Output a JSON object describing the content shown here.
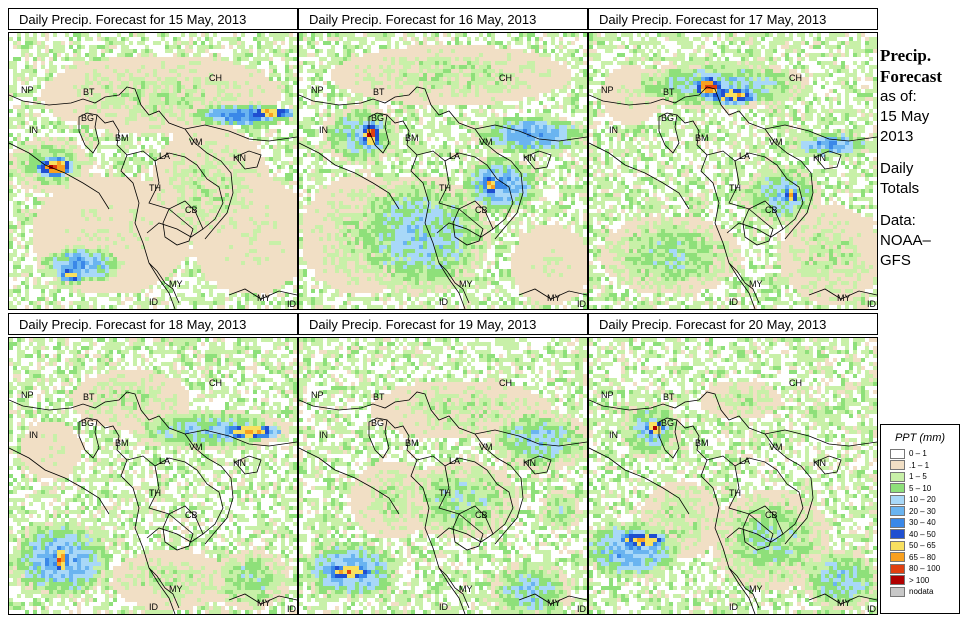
{
  "panels": [
    {
      "title": "Daily Precip. Forecast for  15 May, 2013",
      "labels": {
        "np": "NP",
        "bt": "BT",
        "bg": "BG",
        "in": "IN",
        "bm": "BM",
        "ch": "CH",
        "vm": "VM",
        "la": "LA",
        "hn": "HN",
        "th": "TH",
        "cb": "CB",
        "my1": "MY",
        "my2": "MY",
        "id1": "ID",
        "id2": "ID"
      }
    },
    {
      "title": "Daily Precip. Forecast for  16 May, 2013",
      "labels": {
        "np": "NP",
        "bt": "BT",
        "bg": "BG",
        "in": "IN",
        "bm": "BM",
        "ch": "CH",
        "vm": "VM",
        "la": "LA",
        "hn": "HN",
        "th": "TH",
        "cb": "CB",
        "my1": "MY",
        "my2": "MY",
        "id1": "ID",
        "id2": "ID"
      }
    },
    {
      "title": "Daily Precip. Forecast for  17 May, 2013",
      "labels": {
        "np": "NP",
        "bt": "BT",
        "bg": "BG",
        "in": "IN",
        "bm": "BM",
        "ch": "CH",
        "vm": "VM",
        "la": "LA",
        "hn": "HN",
        "th": "TH",
        "cb": "CB",
        "my1": "MY",
        "my2": "MY",
        "id1": "ID",
        "id2": "ID"
      }
    },
    {
      "title": "Daily Precip. Forecast for  18 May, 2013",
      "labels": {
        "np": "NP",
        "bt": "BT",
        "bg": "BG",
        "in": "IN",
        "bm": "BM",
        "ch": "CH",
        "vm": "VM",
        "la": "LA",
        "hn": "HN",
        "th": "TH",
        "cb": "CB",
        "my1": "MY",
        "my2": "MY",
        "id1": "ID",
        "id2": "ID"
      }
    },
    {
      "title": "Daily Precip. Forecast for  19 May, 2013",
      "labels": {
        "np": "NP",
        "bt": "BT",
        "bg": "BG",
        "in": "IN",
        "bm": "BM",
        "ch": "CH",
        "vm": "VM",
        "la": "LA",
        "hn": "HN",
        "th": "TH",
        "cb": "CB",
        "my1": "MY",
        "my2": "MY",
        "id1": "ID",
        "id2": "ID"
      }
    },
    {
      "title": "Daily Precip. Forecast for  20 May, 2013",
      "labels": {
        "np": "NP",
        "bt": "BT",
        "bg": "BG",
        "in": "IN",
        "bm": "BM",
        "ch": "CH",
        "vm": "VM",
        "la": "LA",
        "hn": "HN",
        "th": "TH",
        "cb": "CB",
        "my1": "MY",
        "my2": "MY",
        "id1": "ID",
        "id2": "ID"
      }
    }
  ],
  "side": {
    "line1": "Precip.",
    "line2": "Forecast",
    "line3": "as of:",
    "line4": "15 May",
    "line5": "2013",
    "line6": "Daily",
    "line7": "Totals",
    "line8": "Data:",
    "line9": "NOAA–",
    "line10": "GFS"
  },
  "legend": {
    "title": "PPT (mm)",
    "items": [
      {
        "label": "0 – 1",
        "color": "#ffffff"
      },
      {
        "label": ".1 – 1",
        "color": "#f1dfc5"
      },
      {
        "label": "1 – 5",
        "color": "#c8f0a8"
      },
      {
        "label": "5 – 10",
        "color": "#8ee07a"
      },
      {
        "label": "10 – 20",
        "color": "#a8d8f8"
      },
      {
        "label": "20 – 30",
        "color": "#6ab4f0"
      },
      {
        "label": "30 – 40",
        "color": "#3a88e8"
      },
      {
        "label": "40 – 50",
        "color": "#1f4fd0"
      },
      {
        "label": "50 – 65",
        "color": "#f8e060"
      },
      {
        "label": "65 – 80",
        "color": "#f8a020"
      },
      {
        "label": "80 – 100",
        "color": "#e04010"
      },
      {
        "label": "> 100",
        "color": "#b00000"
      },
      {
        "label": "nodata",
        "color": "#c8c8c8"
      }
    ]
  }
}
